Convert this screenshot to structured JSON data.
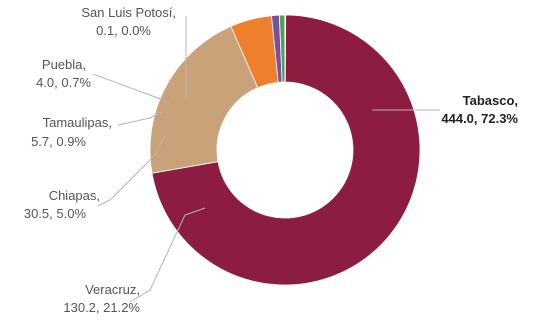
{
  "chart_data": {
    "type": "pie",
    "donut": true,
    "title": "",
    "slices": [
      {
        "name": "Tabasco",
        "value": 444.0,
        "percent": "72.3%",
        "value_text": "444.0,",
        "percent_text": "72.3%",
        "color": "#8c1d40"
      },
      {
        "name": "Veracruz,",
        "value": 130.2,
        "percent": "21.2%",
        "value_text": "130.2,",
        "percent_text": "21.2%",
        "color": "#c9a27a"
      },
      {
        "name": "Chiapas,",
        "value": 30.5,
        "percent": "5.0%",
        "value_text": "30.5,",
        "percent_text": "5.0%",
        "color": "#ee7f2d"
      },
      {
        "name": "Tamaulipas,",
        "value": 5.7,
        "percent": "0.9%",
        "value_text": "5.7,",
        "percent_text": "0.9%",
        "color": "#7b4f9e"
      },
      {
        "name": "Puebla,",
        "value": 4.0,
        "percent": "0.7%",
        "value_text": "4.0,",
        "percent_text": "0.7%",
        "color": "#4aa35a"
      },
      {
        "name": "San Luis Potosí,",
        "value": 0.1,
        "percent": "0.0%",
        "value_text": "0.1,",
        "percent_text": "0.0%",
        "color": "#2e75b6"
      }
    ],
    "labels": {
      "tabasco": {
        "line1": "Tabasco,",
        "line2": "444.0, 72.3%"
      },
      "veracruz": {
        "line1": "Veracruz,",
        "line2": "130.2, 21.2%"
      },
      "chiapas": {
        "line1": "Chiapas,",
        "line2": "30.5, 5.0%"
      },
      "tamaulipas": {
        "line1": "Tamaulipas,",
        "line2": "5.7, 0.9%"
      },
      "puebla": {
        "line1": "Puebla,",
        "line2": "4.0, 0.7%"
      },
      "sanluis": {
        "line1": "San Luis Potosí,",
        "line2": "0.1, 0.0%"
      }
    },
    "legend": "none"
  }
}
